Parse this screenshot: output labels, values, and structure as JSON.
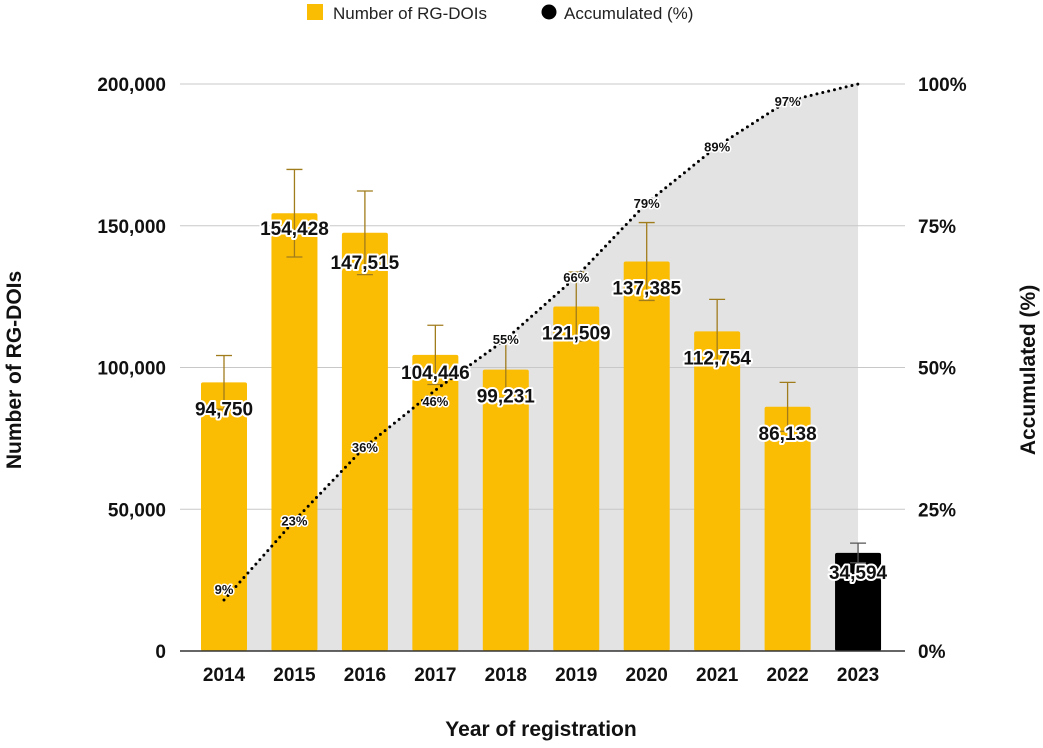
{
  "chart_data": {
    "type": "bar",
    "categories": [
      "2014",
      "2015",
      "2016",
      "2017",
      "2018",
      "2019",
      "2020",
      "2021",
      "2022",
      "2023"
    ],
    "series": [
      {
        "name": "Number of RG-DOIs",
        "axis": "left",
        "type": "bar",
        "values": [
          94750,
          154428,
          147515,
          104446,
          99231,
          121509,
          137385,
          112754,
          86138,
          34594
        ],
        "value_labels": [
          "94,750",
          "154,428",
          "147,515",
          "104,446",
          "99,231",
          "121,509",
          "137,385",
          "112,754",
          "86,138",
          "34,594"
        ],
        "error_bars_relative": 0.1,
        "color": "#FBBC04",
        "last_bar_color": "#000000"
      },
      {
        "name": "Accumulated (%)",
        "axis": "right",
        "type": "line",
        "style": "dotted",
        "area_fill": true,
        "values": [
          9,
          23,
          36,
          46,
          55,
          66,
          79,
          89,
          97,
          100
        ],
        "value_labels": [
          "9%",
          "23%",
          "36%",
          "46%",
          "55%",
          "66%",
          "79%",
          "89%",
          "97%",
          ""
        ],
        "color": "#000000",
        "area_color": "#E3E3E3"
      }
    ],
    "xlabel": "Year of registration",
    "ylabel": "Number of RG-DOIs",
    "y2label": "Accumulated (%)",
    "ylim": [
      0,
      200000
    ],
    "y2lim": [
      0,
      100
    ],
    "yticks": [
      "0",
      "50,000",
      "100,000",
      "150,000",
      "200,000"
    ],
    "y2ticks": [
      "0%",
      "25%",
      "50%",
      "75%",
      "100%"
    ],
    "grid": true,
    "legend": "top",
    "legend_entries": [
      "Number of RG-DOIs",
      "Accumulated (%)"
    ],
    "error_bar_color": "#A07C1C"
  }
}
